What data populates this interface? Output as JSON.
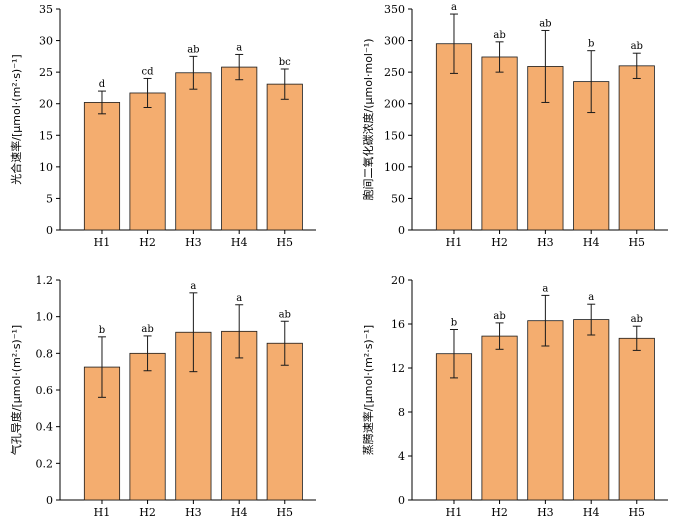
{
  "colors": {
    "bar": "#f4ad6f",
    "axis": "#000000"
  },
  "chart_data": [
    {
      "type": "bar",
      "ylabel": "光合速率/[μmol·(m²·s)⁻¹]",
      "ylim": [
        0,
        35
      ],
      "yticks": [
        0,
        5,
        10,
        15,
        20,
        25,
        30,
        35
      ],
      "categories": [
        "H1",
        "H2",
        "H3",
        "H4",
        "H5"
      ],
      "values": [
        20.2,
        21.7,
        24.9,
        25.8,
        23.1
      ],
      "errors": [
        1.8,
        2.3,
        2.6,
        2.0,
        2.4
      ],
      "labels": [
        "d",
        "cd",
        "ab",
        "a",
        "bc"
      ]
    },
    {
      "type": "bar",
      "ylabel": "胞间二氧化碳浓度/(μmol·mol⁻¹)",
      "ylim": [
        0,
        350
      ],
      "yticks": [
        0,
        50,
        100,
        150,
        200,
        250,
        300,
        350
      ],
      "categories": [
        "H1",
        "H2",
        "H3",
        "H4",
        "H5"
      ],
      "values": [
        295,
        274,
        259,
        235,
        260
      ],
      "errors": [
        47,
        24,
        57,
        49,
        20
      ],
      "labels": [
        "a",
        "ab",
        "ab",
        "b",
        "ab"
      ]
    },
    {
      "type": "bar",
      "ylabel": "气孔导度/[μmol·(m²·s)⁻¹]",
      "ylim": [
        0,
        1.2
      ],
      "yticks": [
        "0",
        "0.2",
        "0.4",
        "0.6",
        "0.8",
        "1.0",
        "1.2"
      ],
      "categories": [
        "H1",
        "H2",
        "H3",
        "H4",
        "H5"
      ],
      "values": [
        0.725,
        0.8,
        0.915,
        0.92,
        0.855
      ],
      "errors": [
        0.165,
        0.095,
        0.215,
        0.145,
        0.12
      ],
      "labels": [
        "b",
        "ab",
        "a",
        "a",
        "ab"
      ]
    },
    {
      "type": "bar",
      "ylabel": "蒸腾速率/[μmol·(m²·s)⁻¹]",
      "ylim": [
        0,
        20
      ],
      "yticks": [
        0,
        4,
        8,
        12,
        16,
        20
      ],
      "categories": [
        "H1",
        "H2",
        "H3",
        "H4",
        "H5"
      ],
      "values": [
        13.3,
        14.9,
        16.3,
        16.4,
        14.7
      ],
      "errors": [
        2.2,
        1.2,
        2.3,
        1.4,
        1.1
      ],
      "labels": [
        "b",
        "ab",
        "a",
        "a",
        "ab"
      ]
    }
  ]
}
